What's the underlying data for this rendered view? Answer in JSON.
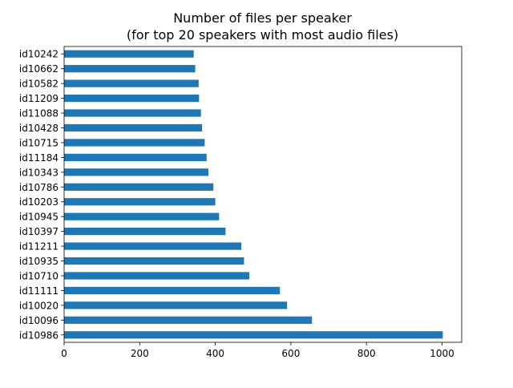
{
  "chart_data": {
    "type": "bar",
    "orientation": "horizontal",
    "title": "Number of files per speaker\n(for top 20 speakers with most audio files)",
    "title_lines": [
      "Number of files per speaker",
      "(for top 20 speakers with most audio files)"
    ],
    "xlabel": "",
    "ylabel": "",
    "categories": [
      "id10242",
      "id10662",
      "id10582",
      "id11209",
      "id11088",
      "id10428",
      "id10715",
      "id11184",
      "id10343",
      "id10786",
      "id10203",
      "id10945",
      "id10397",
      "id11211",
      "id10935",
      "id10710",
      "id11111",
      "id10020",
      "id10096",
      "id10986"
    ],
    "values": [
      343,
      347,
      356,
      357,
      362,
      365,
      372,
      377,
      382,
      395,
      400,
      410,
      427,
      469,
      476,
      490,
      571,
      590,
      656,
      1002
    ],
    "xlim": [
      0,
      1052
    ],
    "xticks": [
      0,
      200,
      400,
      600,
      800,
      1000
    ],
    "xtick_labels": [
      "0",
      "200",
      "400",
      "600",
      "800",
      "1000"
    ],
    "grid": false,
    "bar_color": "#1f77b4"
  }
}
